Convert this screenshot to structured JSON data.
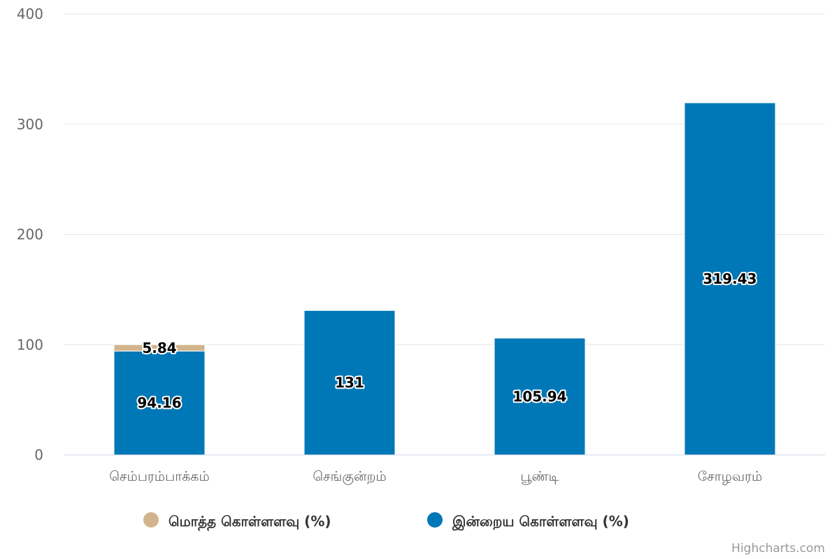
{
  "chart_data": {
    "type": "bar",
    "stacked": true,
    "categories": [
      "செம்பரம்பாக்கம்",
      "செங்குன்றம்",
      "பூண்டி",
      "சோழவரம்"
    ],
    "series": [
      {
        "name": "மொத்த கொள்ளளவு (%)",
        "color": "#d2b48c",
        "values": [
          5.84,
          null,
          null,
          null
        ]
      },
      {
        "name": "இன்றைய கொள்ளளவு (%)",
        "color": "#0077b6",
        "values": [
          94.16,
          131,
          105.94,
          319.43
        ]
      }
    ],
    "y_ticks": [
      "0",
      "100",
      "200",
      "300",
      "400"
    ],
    "ylim": [
      0,
      400
    ],
    "grid": true,
    "legend_position": "bottom"
  },
  "credits": "Highcharts.com"
}
